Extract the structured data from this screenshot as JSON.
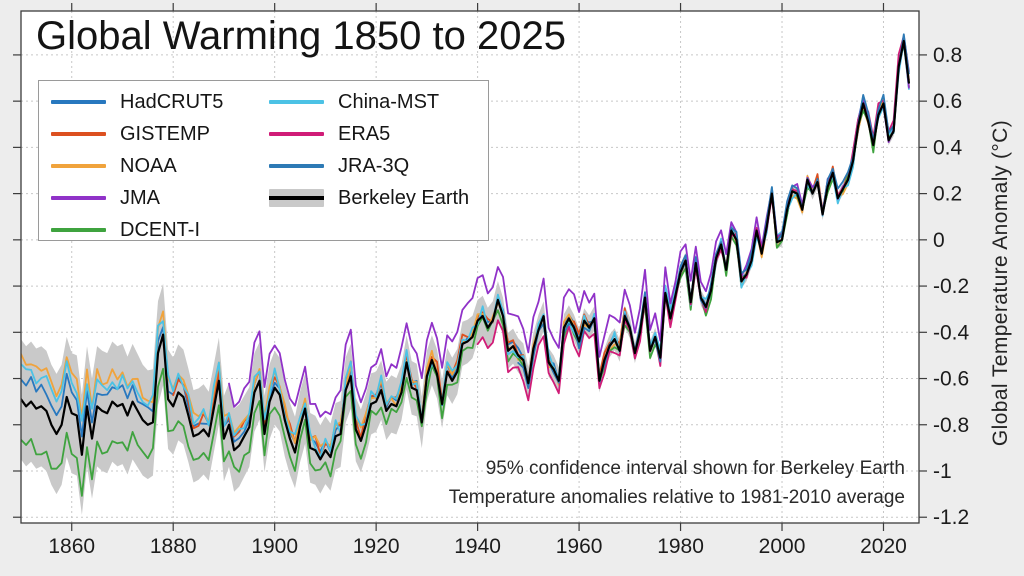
{
  "figure": {
    "title": "Global Warming 1850 to 2025",
    "background_color": "#ededed",
    "plot_background_color": "#ffffff",
    "annotation_line1": "95% confidence interval shown for Berkeley Earth",
    "annotation_line2": "Temperature anomalies relative to 1981-2010 average",
    "y_axis_label": "Global Temperature Anomaly (°C)"
  },
  "legend": {
    "columns": [
      [
        "HadCRUT5",
        "GISTEMP",
        "NOAA",
        "JMA",
        "DCENT-I"
      ],
      [
        "China-MST",
        "ERA5",
        "JRA-3Q",
        "Berkeley Earth"
      ]
    ]
  },
  "chart_data": {
    "type": "line",
    "title": "Global Warming 1850 to 2025",
    "xlabel": "",
    "ylabel": "Global Temperature Anomaly (°C)",
    "baseline": "1981-2010 average",
    "confidence_note": "95% confidence interval shown for Berkeley Earth",
    "grid": true,
    "legend_position": "upper-left",
    "xlim": [
      1850,
      2027
    ],
    "ylim": [
      -1.225,
      0.99
    ],
    "x_ticks": [
      1860,
      1880,
      1900,
      1920,
      1940,
      1960,
      1980,
      2000,
      2020
    ],
    "y_ticks": [
      0.8,
      0.6,
      0.4,
      0.2,
      0,
      -0.2,
      -0.4,
      -0.6,
      -0.8,
      -1,
      -1.2
    ],
    "x_start_year": 1850,
    "x_end_year": 2025,
    "reference_series_name": "Berkeley Earth",
    "reference_values": [
      -0.69,
      -0.72,
      -0.7,
      -0.73,
      -0.72,
      -0.74,
      -0.8,
      -0.84,
      -0.8,
      -0.68,
      -0.75,
      -0.76,
      -0.93,
      -0.72,
      -0.86,
      -0.72,
      -0.74,
      -0.75,
      -0.7,
      -0.72,
      -0.71,
      -0.76,
      -0.7,
      -0.74,
      -0.78,
      -0.8,
      -0.79,
      -0.49,
      -0.41,
      -0.69,
      -0.72,
      -0.66,
      -0.68,
      -0.76,
      -0.85,
      -0.84,
      -0.82,
      -0.85,
      -0.73,
      -0.61,
      -0.86,
      -0.8,
      -0.91,
      -0.89,
      -0.85,
      -0.81,
      -0.66,
      -0.61,
      -0.84,
      -0.7,
      -0.64,
      -0.67,
      -0.78,
      -0.86,
      -0.92,
      -0.81,
      -0.73,
      -0.9,
      -0.91,
      -0.95,
      -0.91,
      -0.94,
      -0.85,
      -0.84,
      -0.65,
      -0.59,
      -0.82,
      -0.87,
      -0.8,
      -0.71,
      -0.7,
      -0.65,
      -0.74,
      -0.71,
      -0.72,
      -0.66,
      -0.53,
      -0.64,
      -0.65,
      -0.79,
      -0.59,
      -0.52,
      -0.58,
      -0.71,
      -0.57,
      -0.61,
      -0.57,
      -0.45,
      -0.44,
      -0.42,
      -0.35,
      -0.33,
      -0.38,
      -0.35,
      -0.26,
      -0.33,
      -0.48,
      -0.46,
      -0.5,
      -0.52,
      -0.62,
      -0.47,
      -0.39,
      -0.33,
      -0.53,
      -0.56,
      -0.61,
      -0.38,
      -0.34,
      -0.38,
      -0.44,
      -0.35,
      -0.38,
      -0.34,
      -0.61,
      -0.52,
      -0.46,
      -0.43,
      -0.48,
      -0.33,
      -0.38,
      -0.49,
      -0.4,
      -0.25,
      -0.48,
      -0.42,
      -0.51,
      -0.23,
      -0.34,
      -0.24,
      -0.14,
      -0.09,
      -0.27,
      -0.1,
      -0.25,
      -0.29,
      -0.22,
      -0.08,
      -0.02,
      -0.13,
      0.04,
      0.0,
      -0.18,
      -0.15,
      -0.09,
      0.04,
      -0.06,
      0.06,
      0.2,
      -0.01,
      0.0,
      0.13,
      0.21,
      0.2,
      0.13,
      0.26,
      0.2,
      0.25,
      0.11,
      0.23,
      0.29,
      0.18,
      0.22,
      0.26,
      0.34,
      0.49,
      0.59,
      0.51,
      0.41,
      0.54,
      0.59,
      0.43,
      0.47,
      0.75,
      0.86,
      0.68
    ],
    "ci_halfwidth_breakpoints": [
      [
        1850,
        0.26
      ],
      [
        1870,
        0.26
      ],
      [
        1880,
        0.21
      ],
      [
        1900,
        0.16
      ],
      [
        1915,
        0.14
      ],
      [
        1925,
        0.12
      ],
      [
        1935,
        0.1
      ],
      [
        1945,
        0.08
      ],
      [
        1955,
        0.06
      ],
      [
        1965,
        0.05
      ],
      [
        1975,
        0.04
      ],
      [
        1990,
        0.03
      ],
      [
        2010,
        0.025
      ],
      [
        2025,
        0.02
      ]
    ],
    "band_color": "#c9c9c9",
    "series": [
      {
        "name": "HadCRUT5",
        "color": "#2878bf",
        "start_year": 1850,
        "end_year": 2025,
        "jitter_amp": 0.022,
        "seed": 11,
        "offsets": {
          "1850": 0.1,
          "1880": 0.05,
          "1900": 0.03,
          "1920": 0.02,
          "1950": 0.01,
          "1990": 0.0,
          "2025": 0.0
        }
      },
      {
        "name": "GISTEMP",
        "color": "#dc5020",
        "start_year": 1880,
        "end_year": 2025,
        "jitter_amp": 0.025,
        "seed": 23,
        "offsets": {
          "1880": 0.05,
          "1900": 0.05,
          "1930": 0.03,
          "1950": 0.01,
          "1980": 0.01,
          "2025": 0.01
        }
      },
      {
        "name": "NOAA",
        "color": "#f0a33c",
        "start_year": 1850,
        "end_year": 2025,
        "jitter_amp": 0.025,
        "seed": 37,
        "offsets": {
          "1850": 0.18,
          "1880": 0.1,
          "1900": 0.05,
          "1930": 0.02,
          "1950": 0.0,
          "2025": 0.0
        }
      },
      {
        "name": "DCENT-I",
        "color": "#3fa33f",
        "start_year": 1850,
        "end_year": 2025,
        "jitter_amp": 0.028,
        "seed": 41,
        "offsets": {
          "1850": -0.19,
          "1880": -0.13,
          "1900": -0.07,
          "1930": -0.04,
          "1950": -0.02,
          "1990": -0.01,
          "2025": -0.01
        }
      },
      {
        "name": "China-MST",
        "color": "#4cc2e5",
        "start_year": 1850,
        "end_year": 2025,
        "jitter_amp": 0.035,
        "seed": 53,
        "offsets": {
          "1850": 0.14,
          "1880": 0.08,
          "1900": 0.05,
          "1930": 0.02,
          "1950": 0.01,
          "2025": 0.0
        }
      },
      {
        "name": "JMA",
        "color": "#9032c8",
        "start_year": 1891,
        "end_year": 2025,
        "jitter_amp": 0.025,
        "seed": 67,
        "offsets": {
          "1891": 0.2,
          "1910": 0.18,
          "1930": 0.17,
          "1950": 0.15,
          "1970": 0.11,
          "1990": 0.05,
          "2010": 0.01,
          "2025": 0.0
        }
      },
      {
        "name": "ERA5",
        "color": "#d01c77",
        "start_year": 1940,
        "end_year": 2025,
        "jitter_amp": 0.025,
        "seed": 71,
        "offsets": {
          "1940": -0.1,
          "1950": -0.07,
          "1970": -0.03,
          "1990": 0.0,
          "2010": 0.02,
          "2025": 0.03
        }
      },
      {
        "name": "JRA-3Q",
        "color": "#2d7ab5",
        "start_year": 1948,
        "end_year": 2025,
        "jitter_amp": 0.022,
        "seed": 83,
        "offsets": {
          "1948": -0.02,
          "1970": 0.0,
          "2000": 0.02,
          "2025": 0.02
        }
      },
      {
        "name": "Berkeley Earth",
        "color": "#000000",
        "start_year": 1850,
        "end_year": 2025,
        "jitter_amp": 0.0,
        "seed": 0,
        "band": true,
        "offsets": {
          "1850": 0.0
        }
      }
    ]
  },
  "style": {
    "grid_color": "#c7c7c7",
    "spine_color": "#3c3c3c",
    "tick_label_color": "#1c1c1c"
  }
}
